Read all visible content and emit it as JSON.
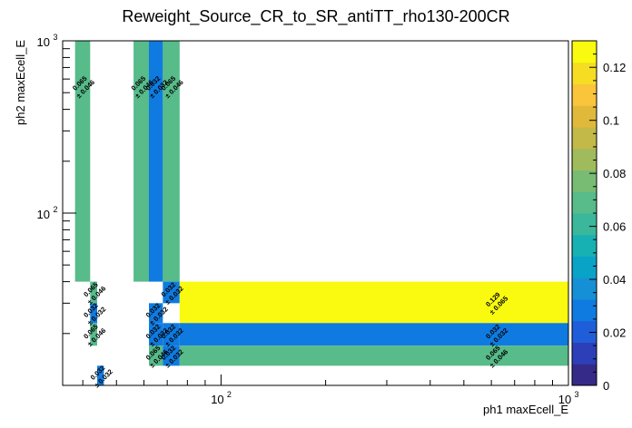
{
  "chart_data": {
    "type": "heatmap",
    "title": "Reweight_Source_CR_to_SR_antiTT_rho130-200CR",
    "xlabel": "ph1 maxEcell_E",
    "ylabel": "ph2 maxEcell_E",
    "x_scale": "log",
    "y_scale": "log",
    "xlim": [
      35,
      1000
    ],
    "ylim": [
      10,
      1000
    ],
    "zlim": [
      0,
      0.13
    ],
    "x_tick_labels": [
      {
        "value": 100,
        "base": "10",
        "exp": "2"
      },
      {
        "value": 1000,
        "base": "10",
        "exp": "3"
      }
    ],
    "y_tick_labels": [
      {
        "value": 100,
        "base": "10",
        "exp": "2"
      },
      {
        "value": 1000,
        "base": "10",
        "exp": "3"
      }
    ],
    "z_tick_labels": [
      "0",
      "0.02",
      "0.04",
      "0.06",
      "0.08",
      "0.1",
      "0.12"
    ],
    "palette": [
      "#352a87",
      "#2d3fb8",
      "#1f5ed8",
      "#0f7be0",
      "#1590d6",
      "#0aa3c8",
      "#18b1b3",
      "#3bb89c",
      "#57bb8a",
      "#78bc74",
      "#a0bb5c",
      "#c3b948",
      "#e0b93a",
      "#fac53a",
      "#f6dd24",
      "#f9fa0f"
    ],
    "empty_color": "#ffffff",
    "cells": [
      {
        "x0": 38,
        "x1": 42,
        "y0": 40,
        "y1": 1000,
        "value": 0.065,
        "error": 0.046
      },
      {
        "x0": 56,
        "x1": 62,
        "y0": 40,
        "y1": 1000,
        "value": 0.065,
        "error": 0.046
      },
      {
        "x0": 62,
        "x1": 68,
        "y0": 40,
        "y1": 1000,
        "value": 0.032,
        "error": 0.032
      },
      {
        "x0": 68,
        "x1": 76,
        "y0": 40,
        "y1": 1000,
        "value": 0.065,
        "error": 0.046
      },
      {
        "x0": 42,
        "x1": 44,
        "y0": 30,
        "y1": 40,
        "value": 0.065,
        "error": 0.046
      },
      {
        "x0": 42,
        "x1": 44,
        "y0": 23,
        "y1": 30,
        "value": 0.032,
        "error": 0.032
      },
      {
        "x0": 42,
        "x1": 44,
        "y0": 17,
        "y1": 23,
        "value": 0.065,
        "error": 0.046
      },
      {
        "x0": 44,
        "x1": 46,
        "y0": 10,
        "y1": 13,
        "value": 0.032,
        "error": 0.032
      },
      {
        "x0": 62,
        "x1": 68,
        "y0": 23,
        "y1": 30,
        "value": 0.032,
        "error": 0.032
      },
      {
        "x0": 62,
        "x1": 68,
        "y0": 17,
        "y1": 23,
        "value": 0.032,
        "error": 0.032
      },
      {
        "x0": 62,
        "x1": 68,
        "y0": 13,
        "y1": 17,
        "value": 0.065,
        "error": 0.046
      },
      {
        "x0": 68,
        "x1": 76,
        "y0": 30,
        "y1": 40,
        "value": 0.032,
        "error": 0.032
      },
      {
        "x0": 68,
        "x1": 76,
        "y0": 17,
        "y1": 23,
        "value": 0.032,
        "error": 0.032
      },
      {
        "x0": 68,
        "x1": 76,
        "y0": 13,
        "y1": 17,
        "value": 0.032,
        "error": 0.032
      },
      {
        "x0": 76,
        "x1": 1000,
        "y0": 23,
        "y1": 40,
        "value": 0.129,
        "error": 0.065
      },
      {
        "x0": 76,
        "x1": 1000,
        "y0": 17,
        "y1": 23,
        "value": 0.032,
        "error": 0.032
      },
      {
        "x0": 76,
        "x1": 1000,
        "y0": 13,
        "y1": 17,
        "value": 0.065,
        "error": 0.046
      }
    ]
  }
}
